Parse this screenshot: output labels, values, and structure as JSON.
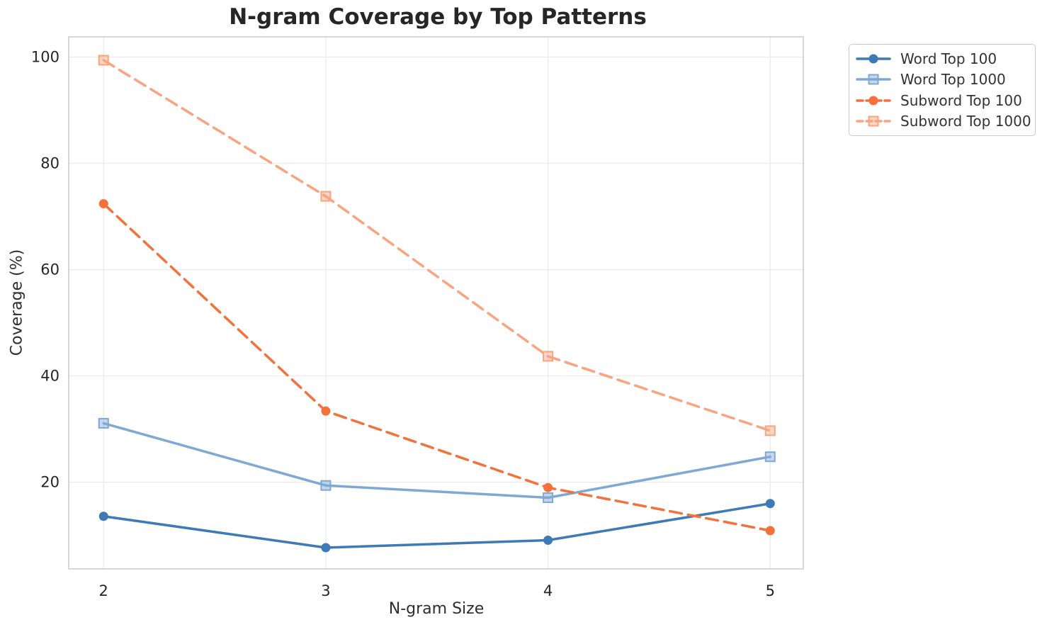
{
  "palette": {
    "grid": "#ebebeb",
    "spine": "#cacaca",
    "tick_text": "#262626",
    "axis_label_text": "#2e2e2e",
    "legend_border": "#cccccc",
    "legend_text": "#333333",
    "title_text": "#262626"
  },
  "chart_data": {
    "type": "line",
    "title": "N-gram Coverage by Top Patterns",
    "xlabel": "N-gram Size",
    "ylabel": "Coverage (%)",
    "x": [
      2,
      3,
      4,
      5
    ],
    "xticks": [
      2,
      3,
      4,
      5
    ],
    "xtick_labels": [
      "2",
      "3",
      "4",
      "5"
    ],
    "yticks": [
      20,
      40,
      60,
      80,
      100
    ],
    "ytick_labels": [
      "20",
      "40",
      "60",
      "80",
      "100"
    ],
    "xlim": [
      1.843,
      5.149
    ],
    "ylim": [
      3.7,
      103.8
    ],
    "grid": true,
    "legend_position": "upper-right-outside",
    "series": [
      {
        "name": "Word Top 100",
        "values": [
          13.6,
          7.7,
          9.1,
          16.0
        ],
        "color": "#3d7ab6",
        "line": "solid",
        "marker": "circle"
      },
      {
        "name": "Word Top 1000",
        "values": [
          31.1,
          19.4,
          17.1,
          24.8
        ],
        "color": "#7fa9d4",
        "line": "solid",
        "marker": "square"
      },
      {
        "name": "Subword Top 100",
        "values": [
          72.4,
          33.4,
          19.0,
          10.9
        ],
        "color": "#f4713a",
        "line": "dashed",
        "marker": "circle"
      },
      {
        "name": "Subword Top 1000",
        "values": [
          99.4,
          73.8,
          43.7,
          29.7
        ],
        "color": "#f9a380",
        "line": "dashed",
        "marker": "square"
      }
    ]
  }
}
